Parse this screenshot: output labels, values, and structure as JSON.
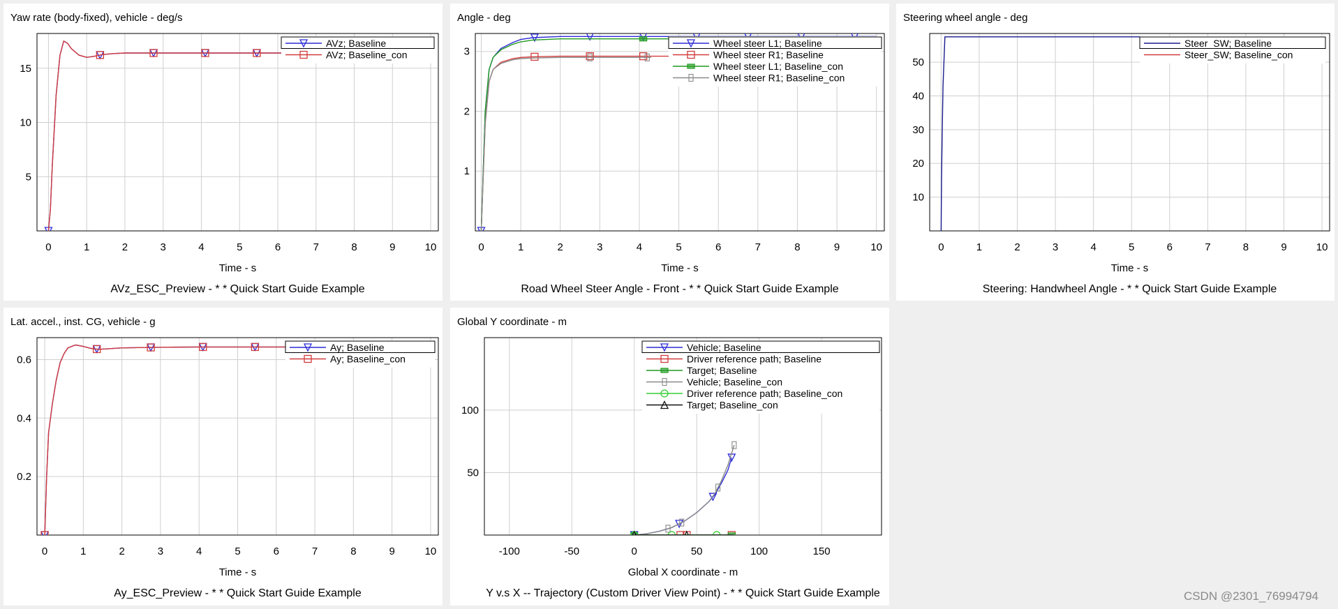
{
  "watermark": "CSDN @2301_76994794",
  "chart_data": [
    {
      "type": "line",
      "title": "Yaw rate (body-fixed), vehicle - deg/s",
      "xlabel": "Time - s",
      "caption": "AVz_ESC_Preview - * * Quick Start Guide Example",
      "xlim": [
        -0.3,
        10.2
      ],
      "ylim": [
        0,
        18.2
      ],
      "xticks": [
        0,
        1,
        2,
        3,
        4,
        5,
        6,
        7,
        8,
        9,
        10
      ],
      "yticks": [
        5,
        10,
        15
      ],
      "grid": true,
      "legend": "top-right",
      "series": [
        {
          "name": "AVz; Baseline",
          "color": "#2b2bd6",
          "marker": "triangle-down",
          "x": [
            0,
            0.05,
            0.1,
            0.2,
            0.3,
            0.4,
            0.5,
            0.6,
            0.8,
            1.0,
            1.2,
            1.4,
            1.7,
            2,
            3,
            4,
            5,
            6,
            7,
            8,
            9,
            10
          ],
          "y": [
            0,
            2,
            6,
            12.5,
            16.2,
            17.5,
            17.3,
            16.8,
            16.2,
            16.0,
            16.1,
            16.25,
            16.35,
            16.4,
            16.4,
            16.4,
            16.4,
            16.4,
            16.4,
            16.4,
            16.4,
            16.4
          ],
          "markers_x": [
            0,
            1.35,
            2.75,
            4.1,
            5.45
          ]
        },
        {
          "name": "AVz; Baseline_con",
          "color": "#d23c3c",
          "marker": "square",
          "x": [
            0,
            0.05,
            0.1,
            0.2,
            0.3,
            0.4,
            0.5,
            0.6,
            0.8,
            1.0,
            1.2,
            1.4,
            1.7,
            2,
            3,
            4,
            5,
            6,
            7,
            8,
            9,
            10
          ],
          "y": [
            0,
            2,
            6,
            12.5,
            16.2,
            17.5,
            17.3,
            16.8,
            16.2,
            16.0,
            16.1,
            16.25,
            16.35,
            16.4,
            16.4,
            16.4,
            16.4,
            16.4,
            16.4,
            16.4,
            16.4,
            16.4
          ],
          "markers_x": [
            1.35,
            2.75,
            4.1,
            5.45
          ]
        }
      ]
    },
    {
      "type": "line",
      "title": "Angle - deg",
      "xlabel": "Time - s",
      "caption": "Road Wheel Steer Angle - Front - * * Quick Start Guide Example",
      "xlim": [
        -0.15,
        10.2
      ],
      "ylim": [
        0,
        3.3
      ],
      "xticks": [
        0,
        1,
        2,
        3,
        4,
        5,
        6,
        7,
        8,
        9,
        10
      ],
      "yticks": [
        1,
        2,
        3
      ],
      "grid": true,
      "legend": "top-right",
      "series": [
        {
          "name": "Wheel steer L1; Baseline",
          "color": "#2b2bd6",
          "marker": "triangle-down",
          "x": [
            0,
            0.05,
            0.1,
            0.2,
            0.3,
            0.5,
            0.8,
            1.0,
            1.3,
            2,
            3,
            4,
            5,
            6,
            7,
            8,
            9,
            10
          ],
          "y": [
            0,
            1.0,
            2.0,
            2.7,
            2.9,
            3.05,
            3.15,
            3.2,
            3.23,
            3.25,
            3.25,
            3.25,
            3.25,
            3.25,
            3.25,
            3.25,
            3.25,
            3.25
          ],
          "markers_x": [
            0,
            1.35,
            2.75,
            4.1,
            5.45,
            6.75,
            8.1,
            9.45
          ]
        },
        {
          "name": "Wheel steer R1; Baseline",
          "color": "#d23c3c",
          "marker": "square",
          "x": [
            0,
            0.05,
            0.1,
            0.2,
            0.3,
            0.5,
            0.8,
            1.0,
            1.3,
            2,
            3,
            4,
            5,
            6
          ],
          "y": [
            0,
            0.9,
            1.8,
            2.5,
            2.7,
            2.82,
            2.88,
            2.9,
            2.91,
            2.92,
            2.92,
            2.92,
            2.92,
            2.92
          ],
          "markers_x": [
            1.35,
            2.75,
            4.1
          ]
        },
        {
          "name": "Wheel steer L1; Baseline_con",
          "color": "#1f9a1f",
          "marker": "square-filled",
          "x": [
            0,
            0.05,
            0.1,
            0.2,
            0.3,
            0.5,
            0.8,
            1.0,
            1.3,
            2,
            3,
            4,
            5
          ],
          "y": [
            0,
            1.0,
            2.0,
            2.7,
            2.9,
            3.03,
            3.12,
            3.16,
            3.19,
            3.21,
            3.21,
            3.21,
            3.21
          ],
          "markers_x": [
            4.1
          ]
        },
        {
          "name": "Wheel steer R1; Baseline_con",
          "color": "#8a8a8a",
          "marker": "rect-thin",
          "x": [
            0,
            0.05,
            0.1,
            0.2,
            0.3,
            0.5,
            0.8,
            1.0,
            1.3,
            2,
            3,
            4,
            4.3
          ],
          "y": [
            0,
            0.9,
            1.8,
            2.5,
            2.7,
            2.8,
            2.86,
            2.88,
            2.89,
            2.9,
            2.9,
            2.9,
            2.9
          ],
          "markers_x": [
            2.75,
            4.2
          ]
        }
      ]
    },
    {
      "type": "line",
      "title": "Steering wheel angle - deg",
      "xlabel": "Time - s",
      "caption": "Steering: Handwheel Angle - * * Quick Start Guide Example",
      "xlim": [
        -0.3,
        10.2
      ],
      "ylim": [
        0,
        58.5
      ],
      "xticks": [
        0,
        1,
        2,
        3,
        4,
        5,
        6,
        7,
        8,
        9,
        10
      ],
      "yticks": [
        10,
        20,
        30,
        40,
        50
      ],
      "grid": true,
      "legend": "top-right",
      "series": [
        {
          "name": "Steer_SW; Baseline",
          "color": "#1a1a8c",
          "marker": "none",
          "x": [
            0,
            0.01,
            0.03,
            0.05,
            0.1,
            10
          ],
          "y": [
            0,
            14.5,
            30,
            43,
            57.5,
            57.5
          ]
        },
        {
          "name": "Steer_SW; Baseline_con",
          "color": "#d23c3c",
          "marker": "none",
          "x": [],
          "y": []
        }
      ]
    },
    {
      "type": "line",
      "title": "Lat. accel., inst. CG, vehicle - g",
      "xlabel": "Time - s",
      "caption": "Ay_ESC_Preview - * * Quick Start Guide Example",
      "xlim": [
        -0.2,
        10.2
      ],
      "ylim": [
        0,
        0.675
      ],
      "xticks": [
        0,
        1,
        2,
        3,
        4,
        5,
        6,
        7,
        8,
        9,
        10
      ],
      "yticks": [
        0.2,
        0.4,
        0.6
      ],
      "grid": true,
      "legend": "top-right",
      "series": [
        {
          "name": "Ay; Baseline",
          "color": "#2b2bd6",
          "marker": "triangle-down",
          "x": [
            0,
            0.05,
            0.1,
            0.2,
            0.3,
            0.4,
            0.5,
            0.6,
            0.8,
            1.0,
            1.2,
            1.4,
            2,
            3,
            4,
            5,
            6,
            7,
            8,
            9,
            10
          ],
          "y": [
            0,
            0.2,
            0.35,
            0.45,
            0.53,
            0.59,
            0.62,
            0.64,
            0.65,
            0.645,
            0.638,
            0.635,
            0.64,
            0.642,
            0.643,
            0.643,
            0.643,
            0.643,
            0.643,
            0.643,
            0.643
          ],
          "markers_x": [
            0,
            1.35,
            2.75,
            4.1,
            5.45,
            6.8,
            8.15,
            9.5
          ]
        },
        {
          "name": "Ay; Baseline_con",
          "color": "#d23c3c",
          "marker": "square",
          "x": [
            0,
            0.05,
            0.1,
            0.2,
            0.3,
            0.4,
            0.5,
            0.6,
            0.8,
            1.0,
            1.2,
            1.4,
            2,
            3,
            4,
            5,
            6,
            7,
            8,
            9,
            10
          ],
          "y": [
            0,
            0.2,
            0.35,
            0.45,
            0.53,
            0.59,
            0.62,
            0.64,
            0.65,
            0.645,
            0.638,
            0.635,
            0.64,
            0.642,
            0.643,
            0.643,
            0.643,
            0.643,
            0.643,
            0.643,
            0.643
          ],
          "markers_x": [
            0,
            1.35,
            2.75,
            4.1,
            5.45,
            6.8,
            8.15,
            9.5
          ]
        }
      ]
    },
    {
      "type": "line",
      "title": "Global Y coordinate - m",
      "xlabel": "Global X coordinate - m",
      "caption": "Y v.s X -- Trajectory (Custom Driver View Point) - * * Quick Start Guide Example",
      "xlim": [
        -120,
        198
      ],
      "ylim": [
        0,
        158
      ],
      "xticks": [
        -100,
        -50,
        0,
        50,
        100,
        150
      ],
      "yticks": [
        50,
        100
      ],
      "grid": true,
      "legend": "top-right",
      "series": [
        {
          "name": "Vehicle; Baseline",
          "color": "#2b2bd6",
          "marker": "triangle-down",
          "x": [
            0,
            10,
            20,
            30,
            40,
            50,
            60,
            65,
            70,
            75,
            78
          ],
          "y": [
            0,
            1,
            3,
            6,
            11,
            18,
            27,
            33,
            42,
            52,
            62
          ],
          "markers_x": [
            0,
            36,
            63,
            78
          ]
        },
        {
          "name": "Driver reference path; Baseline",
          "color": "#d23c3c",
          "marker": "square",
          "x": [
            0,
            80
          ],
          "y": [
            0,
            0
          ],
          "markers_x": [
            37,
            42,
            78
          ]
        },
        {
          "name": "Target; Baseline",
          "color": "#1f9a1f",
          "marker": "square-filled",
          "x": [
            0,
            80
          ],
          "y": [
            0,
            0
          ],
          "markers_x": [
            0,
            78
          ]
        },
        {
          "name": "Vehicle; Baseline_con",
          "color": "#8a8a8a",
          "marker": "rect-thin",
          "x": [
            0,
            10,
            20,
            30,
            40,
            50,
            60,
            65,
            70,
            75,
            80
          ],
          "y": [
            0,
            1,
            3,
            6,
            11,
            18,
            27,
            34,
            44,
            56,
            72
          ],
          "markers_x": [
            27,
            38,
            67,
            80
          ]
        },
        {
          "name": "Driver reference path; Baseline_con",
          "color": "#32cd32",
          "marker": "circle",
          "x": [
            0,
            80
          ],
          "y": [
            0,
            0
          ],
          "markers_x": [
            0,
            30,
            66
          ]
        },
        {
          "name": "Target; Baseline_con",
          "color": "#111111",
          "marker": "triangle-up",
          "x": [
            0,
            80
          ],
          "y": [
            0,
            0
          ],
          "markers_x": [
            0,
            42
          ]
        }
      ]
    }
  ]
}
